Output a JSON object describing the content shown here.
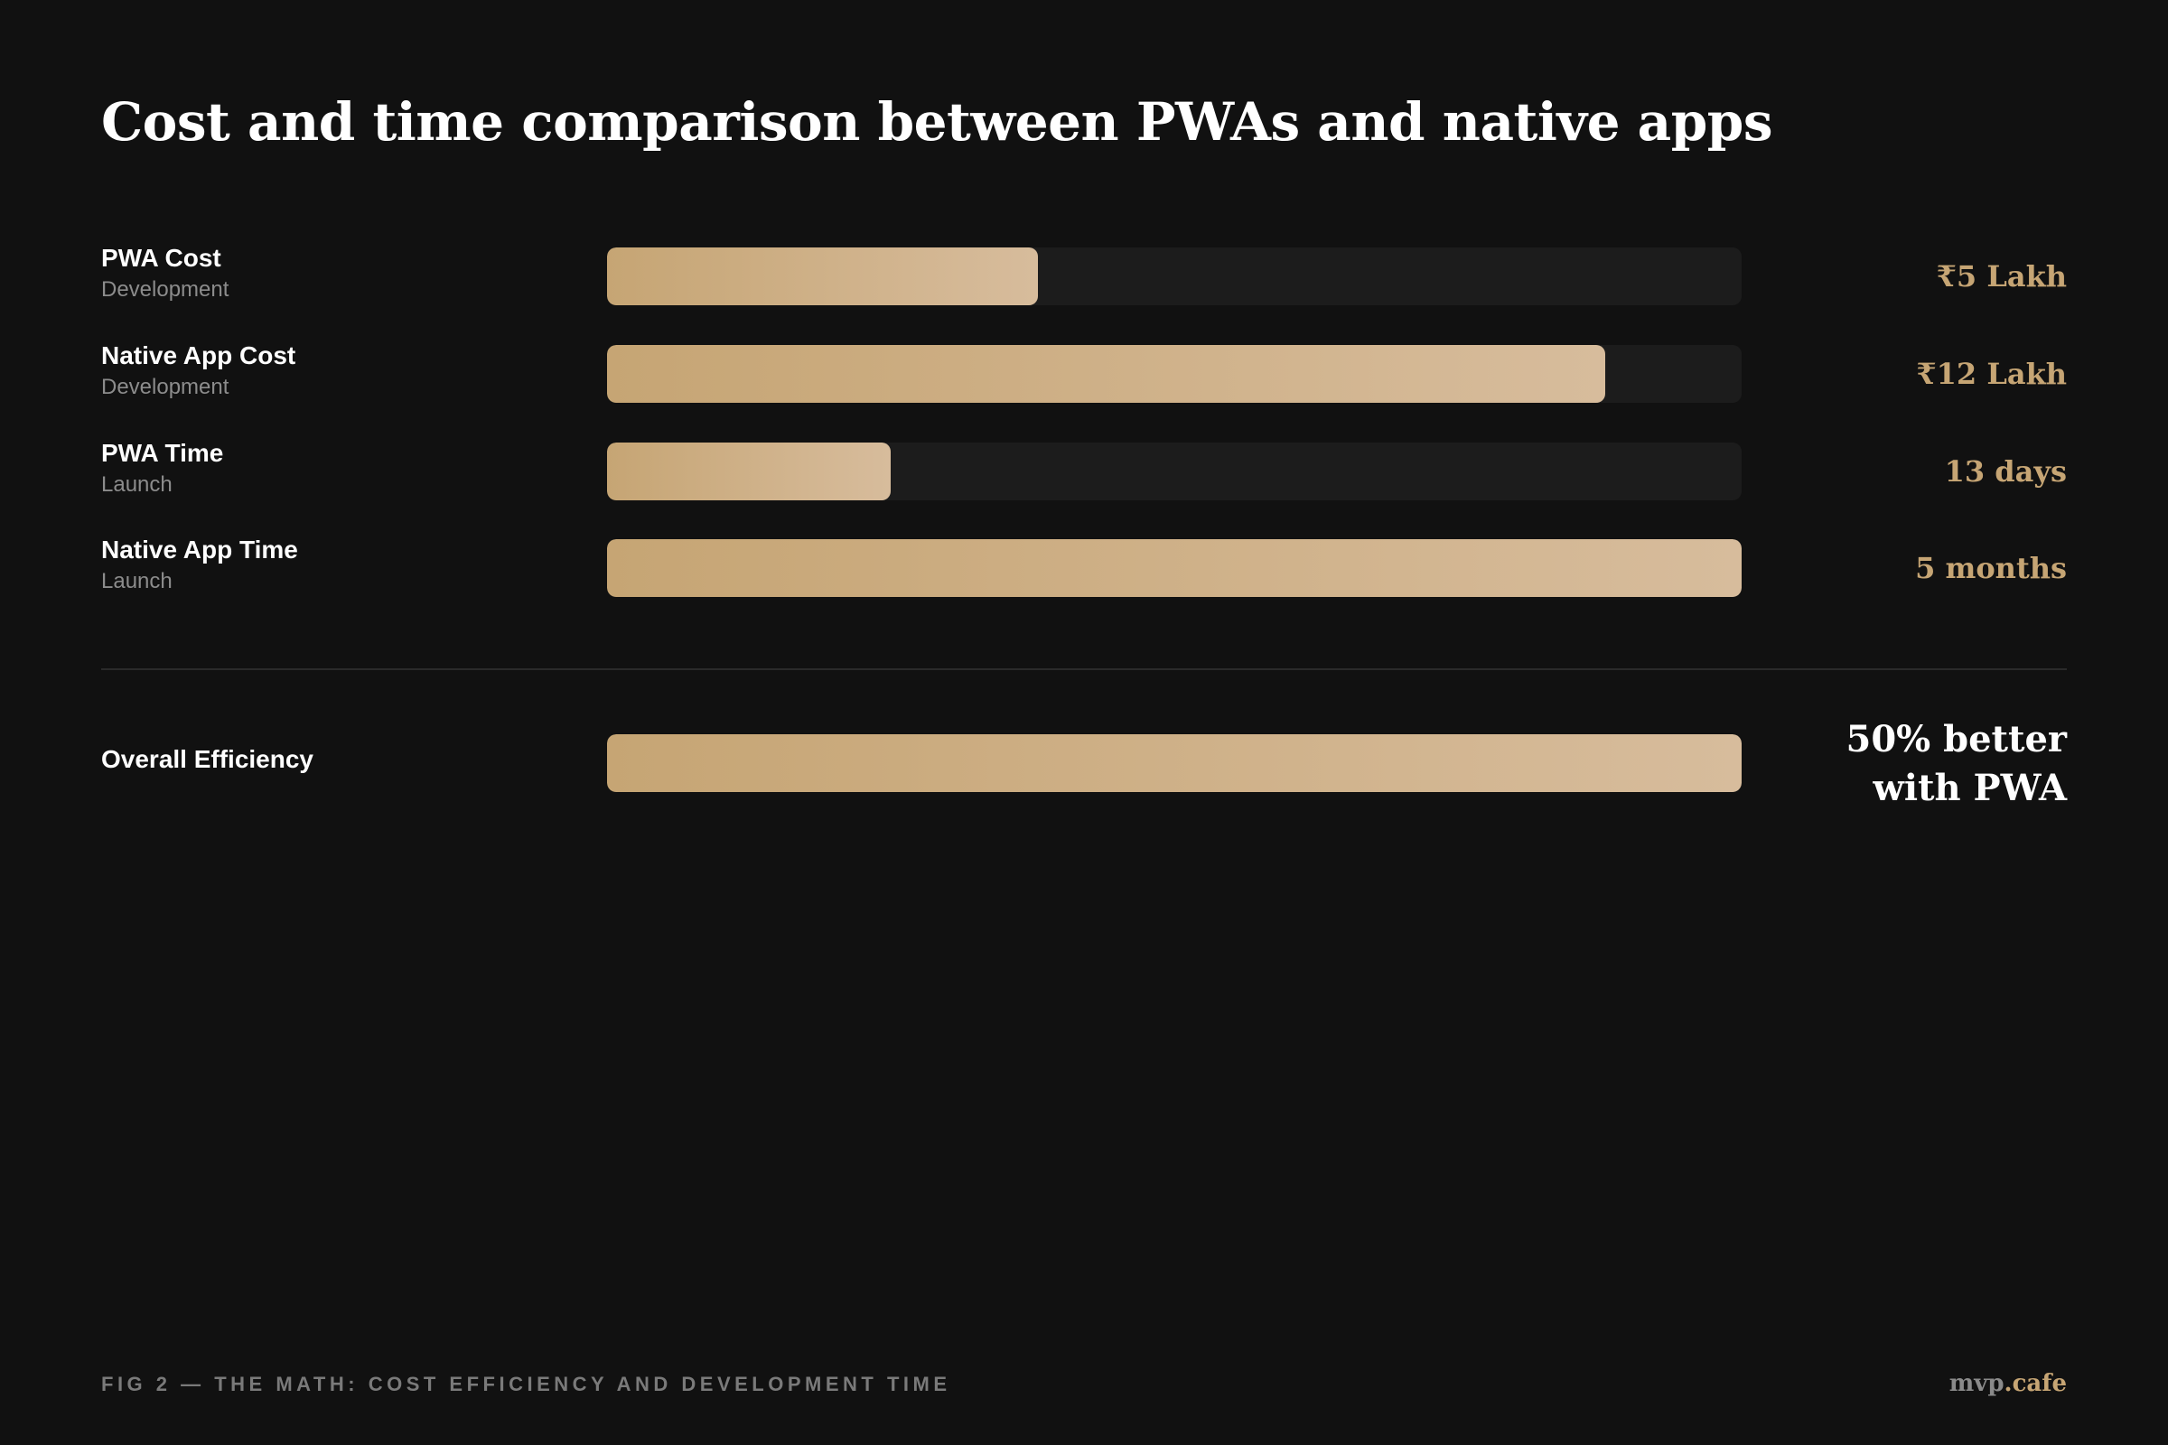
{
  "header": {
    "title": "Cost and time comparison between PWAs and native apps"
  },
  "chart_data": {
    "type": "bar",
    "orientation": "horizontal",
    "categories": [
      "PWA Cost",
      "Native App Cost",
      "PWA Time",
      "Native App Time"
    ],
    "subcategories": [
      "Development",
      "Development",
      "Launch",
      "Launch"
    ],
    "value_labels": [
      "₹5 Lakh",
      "₹12 Lakh",
      "13 days",
      "5 months"
    ],
    "values": [
      0.38,
      0.88,
      0.25,
      1.0
    ],
    "value_scale": "fraction of track (estimated from bar fill)",
    "title": "Cost and time comparison between PWAs and native apps",
    "grid": false,
    "legend": "none",
    "colors": {
      "bar_fill_start": "#c6a574",
      "bar_fill_end": "#d7bc9c",
      "track": "#1c1c1c",
      "value_text": "#c6a574"
    }
  },
  "summary": {
    "label": "Overall Efficiency",
    "value": 1.0,
    "value_label": "50% better with PWA"
  },
  "footer": {
    "caption": "FIG 2 — THE MATH: COST EFFICIENCY AND DEVELOPMENT TIME",
    "brand_main": "mvp",
    "brand_accent": ".cafe"
  }
}
